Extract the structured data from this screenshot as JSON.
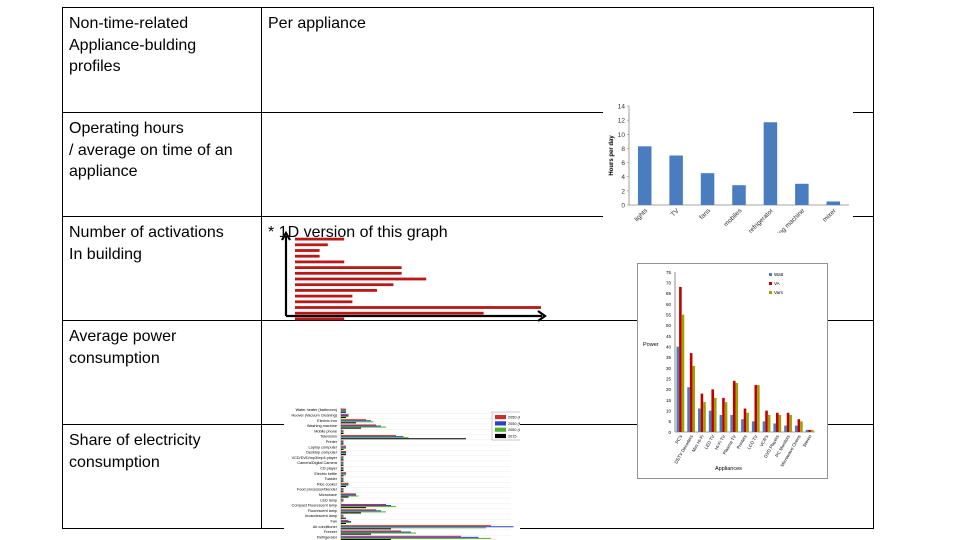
{
  "table": {
    "header_col1": [
      "Non-time-related",
      "Appliance-bulding",
      "profiles"
    ],
    "header_col2": "Per appliance",
    "rows": [
      {
        "label": [
          "Operating hours",
          "/ average on time of an",
          "appliance"
        ]
      },
      {
        "label": [
          "Number of activations",
          "In building"
        ]
      },
      {
        "label": [
          "Average power",
          "consumption"
        ]
      },
      {
        "label": [
          "Share of electricity",
          "consumption"
        ]
      }
    ]
  },
  "note_1d": "* 1D version of this graph",
  "colors": {
    "blue": "#4a7cc0",
    "red": "#c00000",
    "olive": "#a0a000",
    "darkred": "#b81818"
  },
  "chart_data": [
    {
      "type": "bar",
      "categories": [
        "lights",
        "TV",
        "fans",
        "mobiles",
        "refrigerator",
        "washing machine",
        "mixer"
      ],
      "values": [
        8.3,
        7.0,
        4.5,
        2.8,
        11.7,
        3.0,
        0.5
      ],
      "ylabel": "Hours per day",
      "ylim": [
        0,
        14
      ],
      "yticks": [
        "0",
        "2",
        "4",
        "6",
        "8",
        "10",
        "12",
        "14"
      ],
      "grid": false
    },
    {
      "type": "bar",
      "orientation": "horizontal",
      "values": [
        6,
        4,
        3,
        3,
        6,
        13,
        13,
        16,
        12,
        10,
        7,
        7,
        30,
        23,
        6
      ],
      "color": "#c00000",
      "axes": "arrows"
    },
    {
      "type": "bar",
      "categories": [
        "PC's",
        "DSTV Decoders",
        "Mini Hi-Fi",
        "LED TV",
        "Hi-Fi TV",
        "Plasma TV",
        "Printers",
        "LCD TV",
        "VCR's",
        "DVD Players",
        "PC Monitors",
        "Microwave Ovens",
        "Stereo"
      ],
      "series": [
        {
          "name": "Watt",
          "values": [
            40,
            21,
            11,
            10,
            8,
            8,
            6,
            5,
            5,
            4,
            3,
            3,
            1
          ]
        },
        {
          "name": "VA",
          "values": [
            68,
            37,
            18,
            20,
            16,
            24,
            11,
            22,
            10,
            9,
            9,
            6,
            1
          ]
        },
        {
          "name": "Vars",
          "values": [
            55,
            31,
            14,
            16,
            14,
            23,
            9,
            22,
            8,
            8,
            8,
            5,
            1
          ]
        }
      ],
      "ylabel": "Power",
      "xlabel": "Appliances",
      "ylim": [
        0,
        75
      ],
      "yticks": [
        "0",
        "5",
        "10",
        "15",
        "20",
        "25",
        "30",
        "35",
        "40",
        "45",
        "50",
        "55",
        "60",
        "65",
        "70",
        "75"
      ],
      "legend": "top-center"
    },
    {
      "type": "bar",
      "orientation": "horizontal",
      "categories": [
        "Water heater (bathroom)",
        "Hoover (Vacuum Cleaning)",
        "Electric iron",
        "Washing machine",
        "Mobile phone",
        "Television",
        "Printer",
        "Laptop computer",
        "Desktop computer",
        "VCD/DVD/mp3/mp4 player",
        "Camera/Digital Camera",
        "CD player",
        "Electric kettle",
        "Toaster",
        "Rice cooker",
        "Food processor/blender",
        "Microwave",
        "LED lamp",
        "Compact Fluorescent lamp",
        "Fluorescent lamp",
        "Incandescent lamp",
        "Fan",
        "Air conditioner",
        "Freezer",
        "Refrigerator"
      ],
      "series": [
        {
          "name": "2050 (Hg)",
          "values": [
            2,
            3,
            10,
            14,
            1,
            22,
            1,
            2,
            2,
            1,
            1,
            1,
            2,
            1,
            3,
            1,
            6,
            1,
            18,
            14,
            1,
            3,
            60,
            24,
            48
          ]
        },
        {
          "name": "2050 (Mg)",
          "values": [
            2,
            3,
            12,
            16,
            1,
            25,
            1,
            2,
            2,
            1,
            1,
            1,
            2,
            1,
            3,
            1,
            6,
            1,
            20,
            16,
            1,
            4,
            69,
            28,
            55
          ]
        },
        {
          "name": "2050 (Lg)",
          "values": [
            2,
            3,
            13,
            18,
            1,
            27,
            1,
            2,
            2,
            1,
            1,
            1,
            2,
            1,
            3,
            1,
            7,
            1,
            22,
            18,
            1,
            4,
            58,
            30,
            60
          ]
        },
        {
          "name": "2015",
          "values": [
            2,
            2,
            6,
            8,
            1,
            50,
            1,
            1,
            2,
            1,
            1,
            1,
            1,
            1,
            2,
            1,
            3,
            0,
            10,
            8,
            2,
            2,
            20,
            12,
            20
          ]
        }
      ],
      "series_colors": [
        "#c83030",
        "#3040c0",
        "#50b030",
        "#000000"
      ],
      "legend": "top-right"
    }
  ]
}
